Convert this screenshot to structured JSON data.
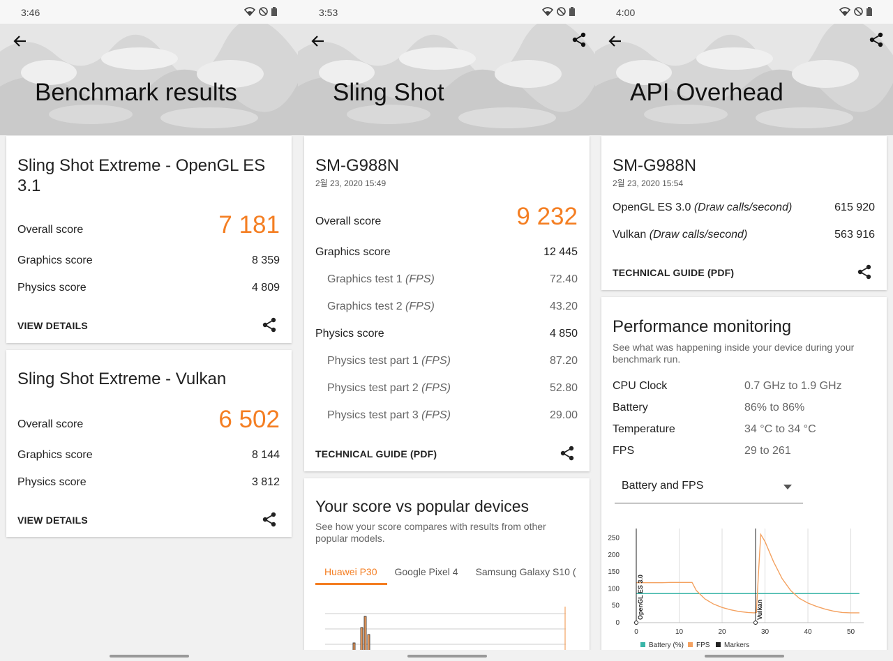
{
  "status_times": [
    "3:46",
    "3:53",
    "4:00"
  ],
  "titles": [
    "Benchmark results",
    "Sling Shot",
    "API Overhead"
  ],
  "panel1": {
    "cards": [
      {
        "title": "Sling Shot Extreme - OpenGL ES 3.1",
        "overall_label": "Overall score",
        "overall_value": "7 181",
        "graphics_label": "Graphics score",
        "graphics_value": "8 359",
        "physics_label": "Physics score",
        "physics_value": "4 809",
        "link": "VIEW DETAILS"
      },
      {
        "title": "Sling Shot Extreme - Vulkan",
        "overall_label": "Overall score",
        "overall_value": "6 502",
        "graphics_label": "Graphics score",
        "graphics_value": "8 144",
        "physics_label": "Physics score",
        "physics_value": "3 812",
        "link": "VIEW DETAILS"
      }
    ]
  },
  "panel2": {
    "device": "SM-G988N",
    "date": "2월 23, 2020 15:49",
    "overall_label": "Overall score",
    "overall_value": "9 232",
    "rows": [
      {
        "label": "Graphics score",
        "suffix": "",
        "value": "12 445"
      },
      {
        "label": "Graphics test 1 ",
        "suffix": "(FPS)",
        "value": "72.40"
      },
      {
        "label": "Graphics test 2 ",
        "suffix": "(FPS)",
        "value": "43.20"
      },
      {
        "label": "Physics score",
        "suffix": "",
        "value": "4 850"
      },
      {
        "label": "Physics test part 1 ",
        "suffix": "(FPS)",
        "value": "87.20"
      },
      {
        "label": "Physics test part 2 ",
        "suffix": "(FPS)",
        "value": "52.80"
      },
      {
        "label": "Physics test part 3 ",
        "suffix": "(FPS)",
        "value": "29.00"
      }
    ],
    "link": "TECHNICAL GUIDE (PDF)",
    "compare_title": "Your score vs popular devices",
    "compare_desc": "See how your score compares with results from other popular models.",
    "tabs": [
      "Huawei P30",
      "Google Pixel 4",
      "Samsung Galaxy S10 ("
    ]
  },
  "panel3": {
    "device": "SM-G988N",
    "date": "2월 23, 2020 15:54",
    "rows": [
      {
        "label": "OpenGL ES 3.0 ",
        "suffix": "(Draw calls/second)",
        "value": "615 920"
      },
      {
        "label": "Vulkan ",
        "suffix": "(Draw calls/second)",
        "value": "563 916"
      }
    ],
    "link": "TECHNICAL GUIDE (PDF)",
    "perf_title": "Performance monitoring",
    "perf_desc": "See what was happening inside your device during your benchmark run.",
    "perf_rows": [
      {
        "label": "CPU Clock",
        "value": "0.7 GHz to 1.9 GHz"
      },
      {
        "label": "Battery",
        "value": "86% to 86%"
      },
      {
        "label": "Temperature",
        "value": "34 °C to 34 °C"
      },
      {
        "label": "FPS",
        "value": "29 to 261"
      }
    ],
    "select_value": "Battery and FPS"
  },
  "colors": {
    "accent": "#f47e22",
    "battery": "#3ab5a8",
    "fps": "#f4a261",
    "markers": "#222222"
  },
  "chart_data": [
    {
      "type": "line",
      "title": "",
      "x": [
        0,
        2,
        4,
        6,
        8,
        10,
        12,
        13,
        14,
        16,
        18,
        20,
        22,
        24,
        26,
        27.5,
        28,
        28.5,
        29,
        30,
        32,
        34,
        36,
        38,
        40,
        42,
        44,
        46,
        48,
        50,
        52
      ],
      "series": [
        {
          "name": "Battery (%)",
          "values": [
            86,
            86,
            86,
            86,
            86,
            86,
            86,
            86,
            86,
            86,
            86,
            86,
            86,
            86,
            86,
            86,
            86,
            86,
            86,
            86,
            86,
            86,
            86,
            86,
            86,
            86,
            86,
            86,
            86,
            86,
            86
          ]
        },
        {
          "name": "FPS",
          "values": [
            118,
            118,
            118,
            118,
            119,
            119,
            119,
            119,
            95,
            70,
            55,
            45,
            38,
            33,
            30,
            29,
            30,
            150,
            261,
            240,
            180,
            130,
            95,
            72,
            58,
            48,
            40,
            34,
            30,
            29,
            29
          ]
        }
      ],
      "markers": [
        {
          "x": 0,
          "label": "OpenGL ES 3.0"
        },
        {
          "x": 27.8,
          "label": "Vulkan"
        }
      ],
      "x_ticks": [
        0,
        10,
        20,
        30,
        40,
        50
      ],
      "y_ticks": [
        0,
        50,
        100,
        150,
        200,
        250
      ],
      "legend": [
        "Battery (%)",
        "FPS",
        "Markers"
      ]
    },
    {
      "type": "bar",
      "title": "",
      "note": "score distribution, partially visible"
    }
  ]
}
